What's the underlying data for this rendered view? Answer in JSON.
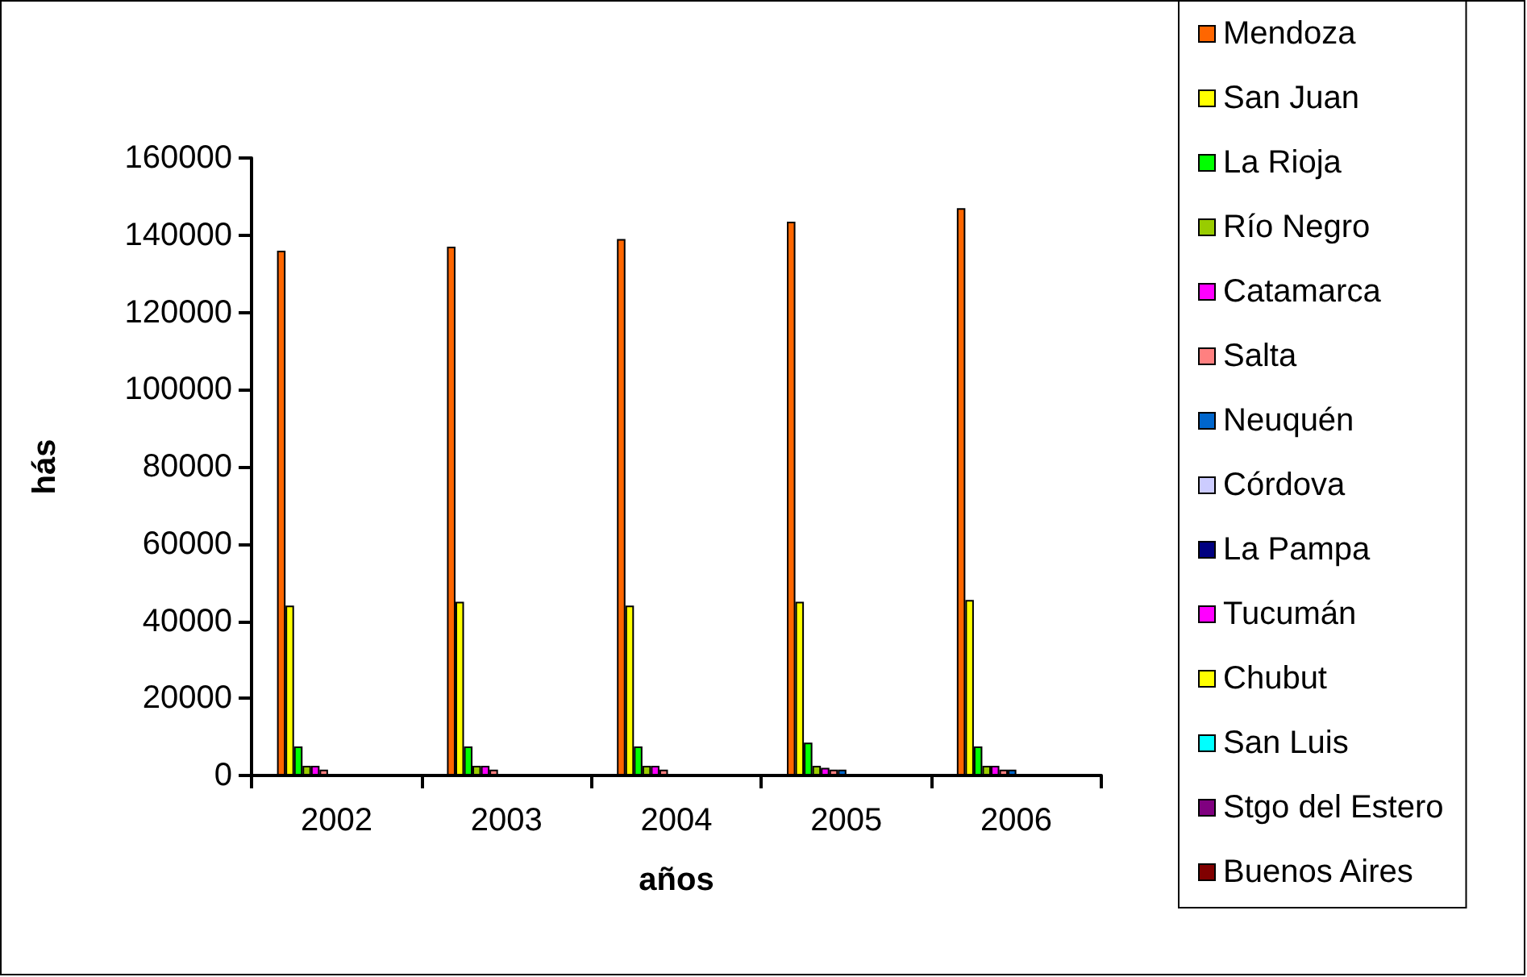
{
  "chart_data": {
    "type": "bar",
    "xlabel": "años",
    "ylabel": "hás",
    "categories": [
      "2002",
      "2003",
      "2004",
      "2005",
      "2006"
    ],
    "series": [
      {
        "name": "Mendoza",
        "color": "#ff6600",
        "values": [
          136000,
          137000,
          139000,
          143500,
          147000
        ]
      },
      {
        "name": "San Juan",
        "color": "#ffff00",
        "values": [
          44000,
          45000,
          44000,
          45000,
          45500
        ]
      },
      {
        "name": "La Rioja",
        "color": "#00ff00",
        "values": [
          7500,
          7500,
          7500,
          8500,
          7500
        ]
      },
      {
        "name": "Río Negro",
        "color": "#99cc00",
        "values": [
          2500,
          2500,
          2500,
          2500,
          2500
        ]
      },
      {
        "name": "Catamarca",
        "color": "#ff00ff",
        "values": [
          2500,
          2500,
          2500,
          2000,
          2500
        ]
      },
      {
        "name": "Salta",
        "color": "#ff8080",
        "values": [
          1500,
          1500,
          1500,
          1500,
          1500
        ]
      },
      {
        "name": "Neuquén",
        "color": "#0066cc",
        "values": [
          null,
          null,
          null,
          1500,
          1500
        ]
      },
      {
        "name": "Córdova",
        "color": "#ccccff",
        "values": [
          null,
          null,
          null,
          null,
          null
        ]
      },
      {
        "name": "La Pampa",
        "color": "#000080",
        "values": [
          null,
          null,
          null,
          null,
          null
        ]
      },
      {
        "name": "Tucumán",
        "color": "#ff00ff",
        "values": [
          null,
          null,
          null,
          null,
          null
        ]
      },
      {
        "name": "Chubut",
        "color": "#ffff00",
        "values": [
          null,
          null,
          null,
          null,
          null
        ]
      },
      {
        "name": "San Luis",
        "color": "#00ffff",
        "values": [
          null,
          null,
          null,
          null,
          null
        ]
      },
      {
        "name": "Stgo del Estero",
        "color": "#800080",
        "values": [
          null,
          null,
          null,
          null,
          null
        ]
      },
      {
        "name": "Buenos Aires",
        "color": "#800000",
        "values": [
          null,
          null,
          null,
          null,
          null
        ]
      }
    ],
    "ylim": [
      0,
      160000
    ],
    "yticks": [
      0,
      20000,
      40000,
      60000,
      80000,
      100000,
      120000,
      140000,
      160000
    ],
    "grid": false,
    "legend": "right"
  }
}
